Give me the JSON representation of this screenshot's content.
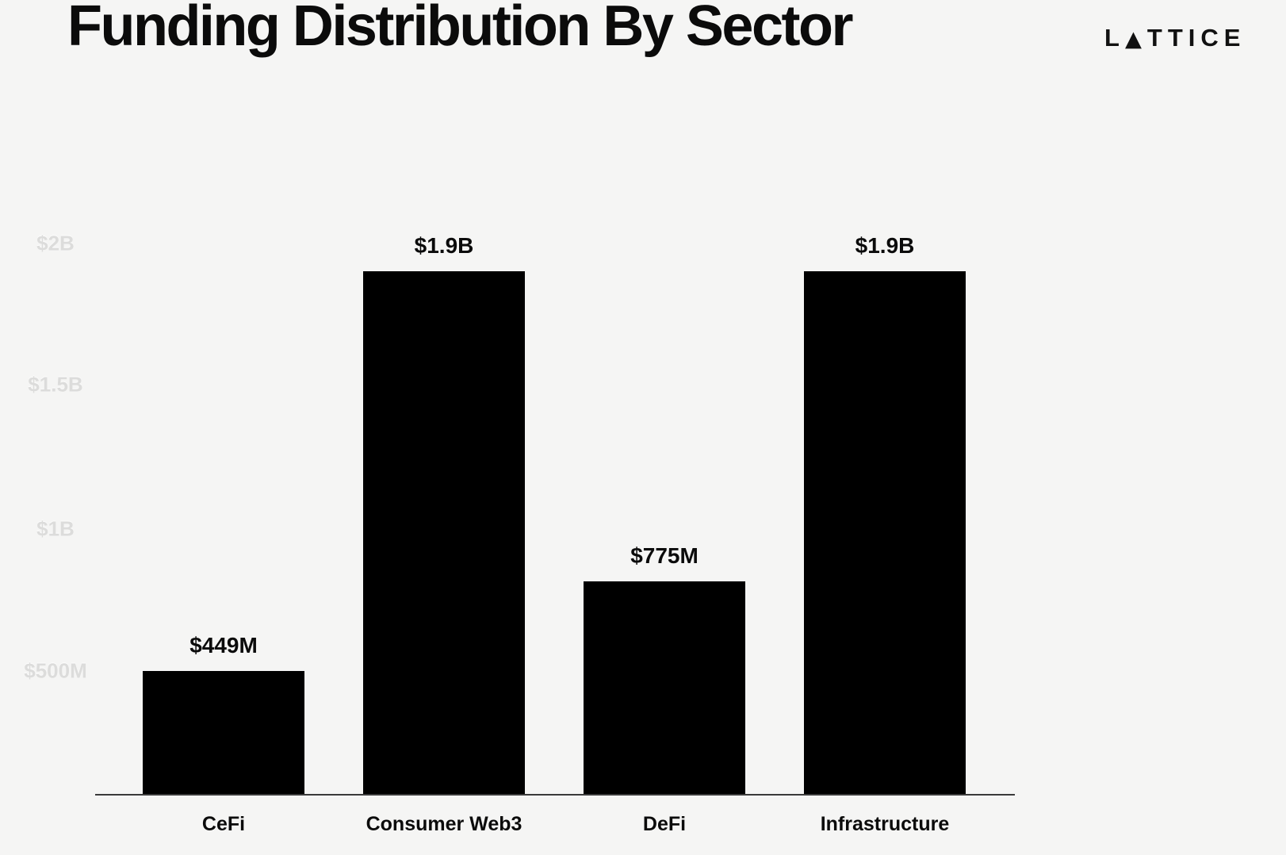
{
  "page": {
    "title": "Funding Distribution By Sector",
    "logo": {
      "prefix": "L",
      "triangle": "▲",
      "suffix": "TTICE",
      "name": "LATTICE"
    }
  },
  "chart_data": {
    "type": "bar",
    "title": "Funding Distribution By Sector",
    "categories": [
      "CeFi",
      "Consumer Web3",
      "DeFi",
      "Infrastructure"
    ],
    "values": [
      449,
      1900,
      775,
      1900
    ],
    "unit": "USD millions",
    "value_labels": [
      "$449M",
      "$1.9B",
      "$775M",
      "$1.9B"
    ],
    "y_ticks": [
      "$2B",
      "$1.5B",
      "$1B",
      "$500M"
    ],
    "y_tick_values": [
      2000,
      1500,
      1000,
      500
    ],
    "ylim": [
      0,
      2000
    ],
    "grid": false,
    "legend": false,
    "bar_color": "#000000",
    "background_color": "#f5f5f4",
    "axis_line_color": "#3a3a3a",
    "tick_label_color": "#dcdcdb"
  }
}
